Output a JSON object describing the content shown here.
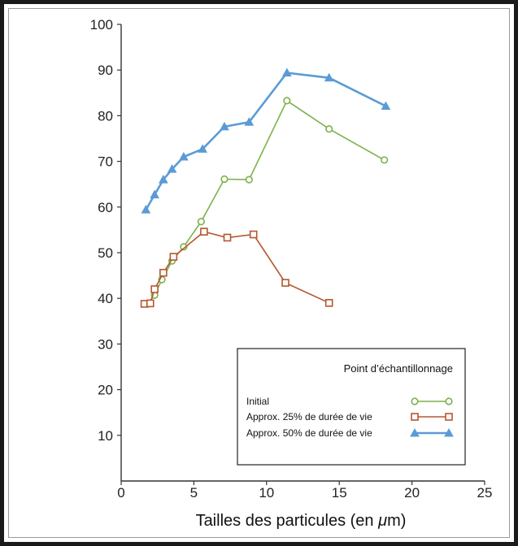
{
  "chart_data": {
    "type": "line",
    "title": "",
    "xlabel": "Tailles des particules (en μm)",
    "ylabel": "",
    "xlim": [
      0,
      25
    ],
    "ylim": [
      0,
      100
    ],
    "xticks": [
      "0",
      "5",
      "10",
      "15",
      "20",
      "25"
    ],
    "yticks": [
      "10",
      "20",
      "30",
      "40",
      "50",
      "60",
      "70",
      "80",
      "90",
      "100"
    ],
    "grid": false,
    "legend": {
      "title": "Point d’échantillonnage",
      "placement": "bottom-right"
    },
    "series": [
      {
        "name": "Initial",
        "marker": "circle",
        "color": "#7cb14b",
        "x": [
          1.8,
          2.3,
          2.8,
          3.5,
          4.3,
          5.5,
          7.1,
          8.8,
          11.4,
          14.3,
          18.1
        ],
        "y": [
          38.8,
          40.7,
          44.1,
          48.2,
          51.3,
          56.8,
          66.1,
          66.0,
          83.3,
          77.1,
          70.3
        ]
      },
      {
        "name": "Approx. 25% de durée de vie",
        "marker": "square",
        "color": "#b5562e",
        "x": [
          1.6,
          2.0,
          2.3,
          2.9,
          3.6,
          5.7,
          7.3,
          9.1,
          11.3,
          14.3
        ],
        "y": [
          38.8,
          38.9,
          42.0,
          45.6,
          49.1,
          54.6,
          53.3,
          54.0,
          43.4,
          39.0
        ]
      },
      {
        "name": "Approx. 50% de durée de vie",
        "marker": "triangle",
        "color": "#5b9bd5",
        "x": [
          1.7,
          2.3,
          2.9,
          3.5,
          4.3,
          5.6,
          7.1,
          8.8,
          11.4,
          14.3,
          18.2
        ],
        "y": [
          59.4,
          62.7,
          66.0,
          68.3,
          71.0,
          72.7,
          77.6,
          78.6,
          89.4,
          88.3,
          82.1
        ]
      }
    ]
  }
}
